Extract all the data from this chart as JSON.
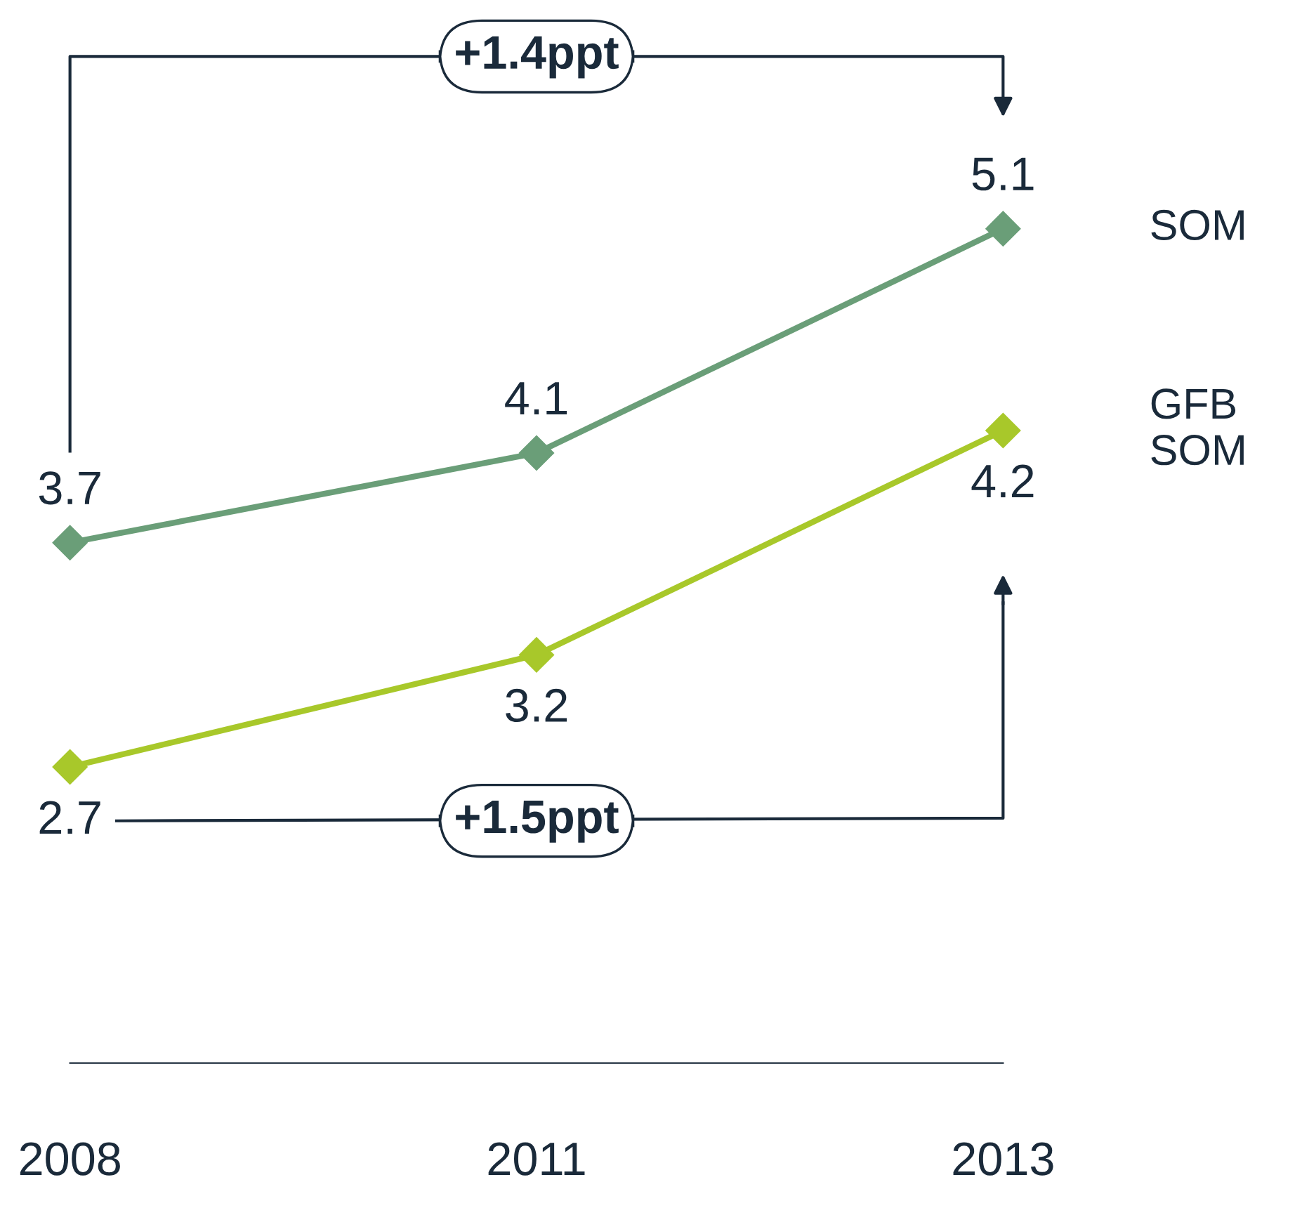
{
  "chart_data": {
    "type": "line",
    "categories": [
      "2008",
      "2011",
      "2013"
    ],
    "series": [
      {
        "name": "SOM",
        "color": "#6a9e78",
        "values": [
          3.7,
          4.1,
          5.1
        ]
      },
      {
        "name": "GFB SOM",
        "color": "#a8c82a",
        "values": [
          2.7,
          3.2,
          4.2
        ]
      }
    ],
    "data_labels": true,
    "marker": "diamond",
    "line_style": "solid",
    "legend": false,
    "grid": false,
    "annotations": [
      "+1.4ppt",
      "+1.5ppt"
    ]
  }
}
